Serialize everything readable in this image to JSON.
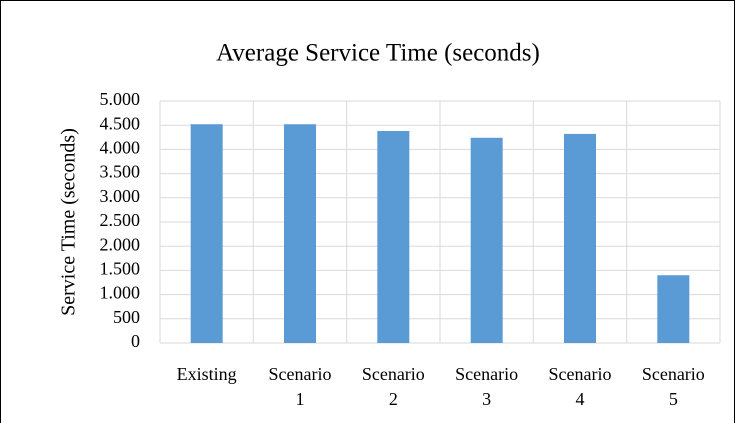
{
  "chart_data": {
    "type": "bar",
    "title": "Average Service Time (seconds)",
    "y_label": "Service Time (seconds)",
    "categories": [
      "Existing",
      "Scenario 1",
      "Scenario 2",
      "Scenario 3",
      "Scenario 4",
      "Scenario 5"
    ],
    "values": [
      4520,
      4520,
      4380,
      4240,
      4320,
      1400
    ],
    "color": "#5b9bd5",
    "ylim": [
      0,
      5000
    ],
    "yticks": [
      0,
      500,
      {
        "value": 1000,
        "label": "1.000"
      },
      {
        "value": 1500,
        "label": "1.500"
      },
      {
        "value": 2000,
        "label": "2.000"
      },
      {
        "value": 2500,
        "label": "2.500"
      },
      {
        "value": 3000,
        "label": "3.000"
      },
      {
        "value": 3500,
        "label": "3.500"
      },
      {
        "value": 4000,
        "label": "4.000"
      },
      {
        "value": 4500,
        "label": "4.500"
      },
      {
        "value": 5000,
        "label": "5.000"
      }
    ],
    "grid": true
  }
}
